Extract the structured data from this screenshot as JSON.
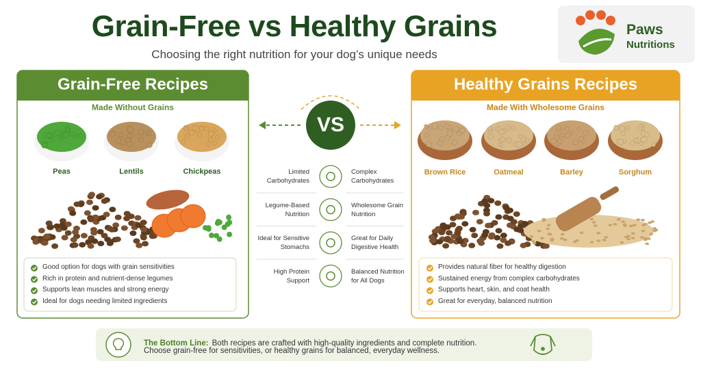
{
  "header": {
    "title": "Grain-Free vs Healthy Grains",
    "subtitle": "Choosing the right nutrition for your dog’s unique needs"
  },
  "logo": {
    "line1": "Paws",
    "line2": "Nutritions"
  },
  "left_panel": {
    "title": "Grain-Free Recipes",
    "subtitle": "Made Without Grains",
    "ingredients": [
      "Peas",
      "Lentils",
      "Chickpeas"
    ],
    "benefits": [
      "Good option for dogs with grain sensitivities",
      "Rich in protein and nutrient-dense legumes",
      "Supports lean muscles and strong energy",
      "Ideal for dogs needing limited ingredients"
    ]
  },
  "vs": "VS",
  "comparison": [
    {
      "left": "Limited Carbohydrates",
      "right": "Complex Carbohydrates"
    },
    {
      "left": "Legume-Based Nutrition",
      "right": "Wholesome Grain Nutrition"
    },
    {
      "left": "Ideal for Sensitive Stomachs",
      "right": "Great for Daily Digestive Health"
    },
    {
      "left": "High Protein Support",
      "right": "Balanced Nutrition for All Dogs"
    }
  ],
  "right_panel": {
    "title": "Healthy Grains Recipes",
    "subtitle": "Made With Wholesome Grains",
    "ingredients": [
      "Brown Rice",
      "Oatmeal",
      "Barley",
      "Sorghum"
    ],
    "benefits": [
      "Provides natural fiber for healthy digestion",
      "Sustained energy from complex carbohydrates",
      "Supports heart, skin, and coat health",
      "Great for everyday, balanced nutrition"
    ]
  },
  "bottom_line": {
    "label": "The Bottom Line:",
    "line1": "Both recipes are crafted with high-quality ingredients and complete nutrition.",
    "line2": "Choose grain-free for sensitivities, or healthy grains for balanced, everyday wellness."
  }
}
